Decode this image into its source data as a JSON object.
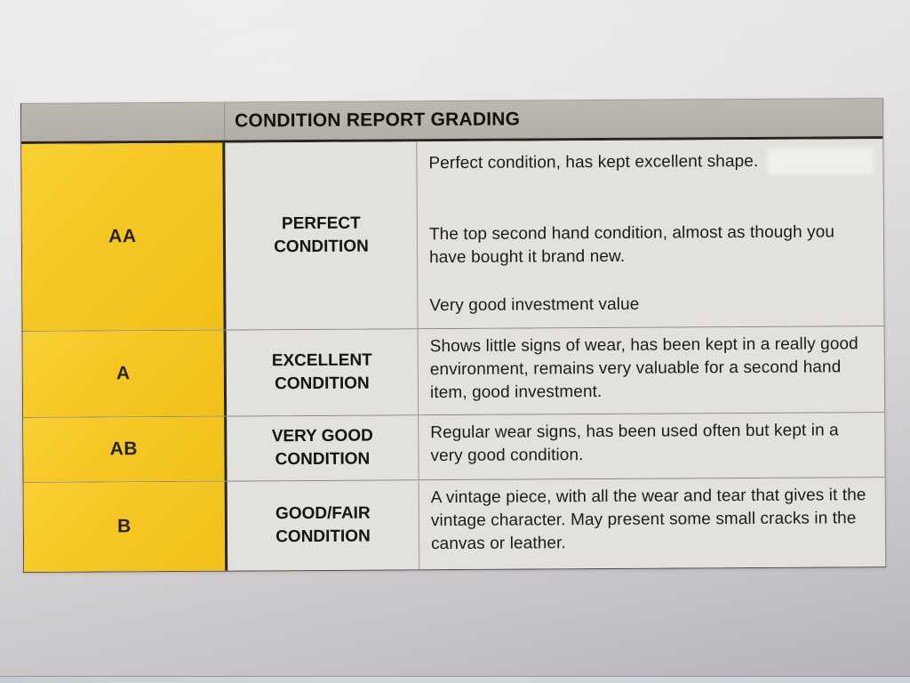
{
  "table": {
    "title": "CONDITION REPORT GRADING",
    "rows": [
      {
        "grade": "AA",
        "condition": "PERFECT CONDITION",
        "description": [
          "Perfect condition, has kept excellent shape.",
          "The top second hand condition, almost as though you have bought it brand new.",
          "Very good investment value"
        ]
      },
      {
        "grade": "A",
        "condition": "EXCELLENT CONDITION",
        "description": [
          "Shows little signs of wear, has been kept in a really good environment, remains very valuable for a second hand item, good investment."
        ]
      },
      {
        "grade": "AB",
        "condition": "VERY GOOD CONDITION",
        "description": [
          "Regular wear signs, has been used often but kept in a very good condition."
        ]
      },
      {
        "grade": "B",
        "condition": "GOOD/FAIR CONDITION",
        "description": [
          "A vintage piece, with all the wear and tear that gives it the vintage character. May present some small cracks in the canvas or leather."
        ]
      }
    ],
    "colors": {
      "grade_cell_yellow": "#f6c724",
      "header_bar_gray": "#b6b2a9",
      "cell_background": "#e3e1dc",
      "ink": "#1b1916"
    }
  }
}
